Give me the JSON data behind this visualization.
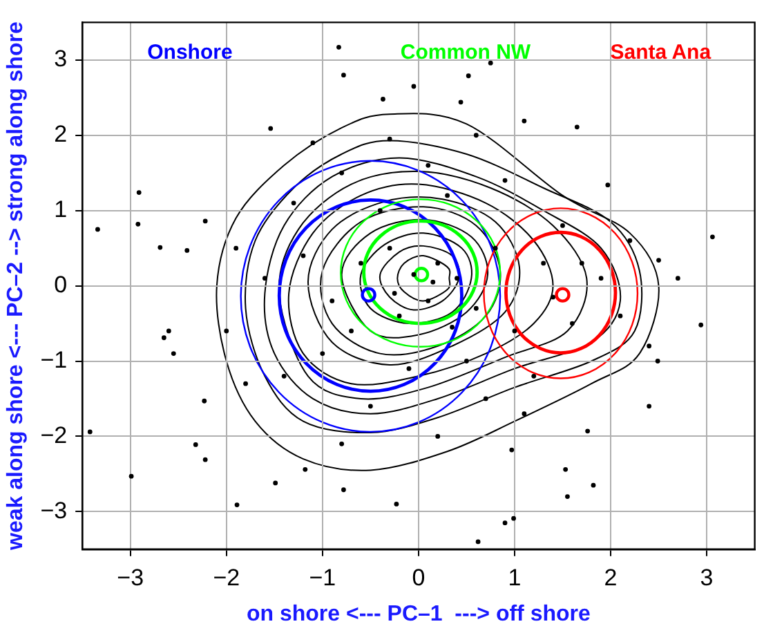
{
  "chart_data": {
    "type": "scatter",
    "xlabel": "on shore <--- PC–1  ---> off shore",
    "ylabel": "weak along shore <--- PC–2 --> strong along shore",
    "xlim": [
      -3.5,
      3.5
    ],
    "ylim": [
      -3.5,
      3.5
    ],
    "xticks": [
      -3,
      -2,
      -1,
      0,
      1,
      2,
      3
    ],
    "yticks": [
      -3,
      -2,
      -1,
      0,
      1,
      2,
      3
    ],
    "grid": true,
    "annotations": [
      "Onshore",
      "Common NW",
      "Santa Ana"
    ],
    "series": [
      {
        "type": "scatter",
        "marker": "circle",
        "color": "#000000",
        "x": [
          -3.34,
          -2.91,
          -2.92,
          -2.69,
          -0.83,
          -0.78,
          -0.05,
          0.52,
          0.75,
          1.1,
          1.65,
          3.06,
          2.5,
          -1.54,
          -2.22,
          -2.41,
          -0.37,
          0.44,
          1.97,
          -2.99,
          -1.89,
          -1.49,
          0.9,
          0.99,
          0.62,
          -0.23,
          -0.78,
          1.55,
          1.82,
          1.53,
          2.94,
          2.49,
          2.4,
          -2.23,
          -2.32,
          -2.22,
          -2.65,
          -2.55,
          -3.42,
          -1.18,
          0.97,
          1.76,
          -0.3,
          0.2,
          0.1,
          -0.2,
          0.4,
          -0.6,
          0.6,
          -0.9,
          0.8,
          -0.4,
          0.3,
          1.0,
          -1.2,
          -1.0,
          0.5,
          -0.1,
          1.3,
          1.6,
          1.9,
          2.1,
          1.2,
          0.7,
          -0.5,
          -1.4,
          -1.6,
          -1.3,
          -0.8,
          0.1,
          0.9,
          1.5,
          2.2,
          2.4,
          -1.8,
          -0.8,
          0.2,
          1.1,
          -1.9,
          -1.1,
          -0.3,
          0.6,
          -0.05,
          0.15,
          -0.25,
          0.35,
          -0.7,
          1.4,
          1.7,
          -2.0,
          -2.6,
          2.7
        ],
        "values": [
          0.75,
          1.24,
          0.82,
          0.51,
          3.17,
          2.8,
          2.65,
          2.79,
          2.96,
          2.19,
          2.11,
          0.65,
          0.34,
          2.09,
          0.86,
          0.47,
          2.48,
          2.44,
          1.34,
          -2.53,
          -2.91,
          -2.62,
          -3.15,
          -3.09,
          -3.4,
          -2.9,
          -2.71,
          -2.8,
          -2.65,
          -2.44,
          -0.52,
          -1.0,
          -1.6,
          -1.53,
          -2.11,
          -2.31,
          -0.69,
          -0.9,
          -1.94,
          -2.44,
          -2.18,
          -1.93,
          0.5,
          0.3,
          -0.2,
          -0.4,
          0.1,
          0.3,
          -0.3,
          -0.2,
          0.5,
          1.0,
          1.2,
          -0.6,
          0.4,
          -0.9,
          -1.0,
          -1.1,
          0.3,
          -0.5,
          0.1,
          -0.4,
          -1.2,
          -1.5,
          -1.6,
          -1.2,
          0.1,
          1.1,
          1.5,
          1.6,
          1.4,
          0.8,
          0.6,
          -0.8,
          -1.3,
          -2.1,
          -2.0,
          -1.7,
          0.5,
          1.9,
          1.95,
          2.0,
          0.15,
          0.05,
          -0.1,
          -0.55,
          -0.6,
          -0.15,
          0.3,
          -0.6,
          -0.6,
          0.1
        ]
      },
      {
        "type": "scatter",
        "marker": "circle",
        "color": "#0000ff",
        "x": [
          -0.52
        ],
        "values": [
          -0.12
        ]
      },
      {
        "type": "scatter",
        "marker": "circle",
        "color": "#00ff00",
        "x": [
          0.03
        ],
        "values": [
          0.15
        ]
      },
      {
        "type": "scatter",
        "marker": "circle",
        "color": "#ff0000",
        "x": [
          1.5
        ],
        "values": [
          -0.12
        ]
      }
    ]
  }
}
